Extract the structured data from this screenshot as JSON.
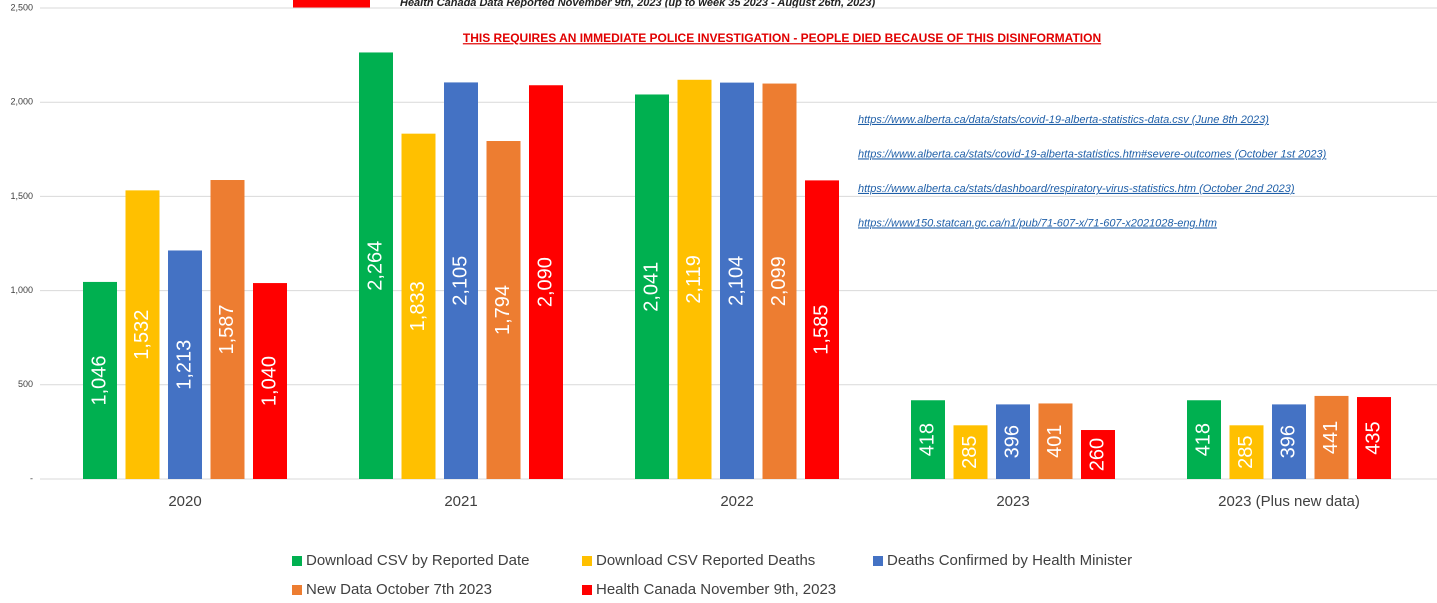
{
  "header_note": "Health Canada Data Reported November 9th, 2023 (up to week 35 2023 - August 26th, 2023)",
  "chart_data": {
    "type": "bar",
    "title": "THIS REQUIRES AN IMMEDIATE POLICE INVESTIGATION - PEOPLE DIED BECAUSE OF THIS DISINFORMATION",
    "annotations": [
      "https://www.alberta.ca/data/stats/covid-19-alberta-statistics-data.csv (June 8th 2023)",
      "https://www.alberta.ca/stats/covid-19-alberta-statistics.htm#severe-outcomes (October 1st 2023)",
      "https://www.alberta.ca/stats/dashboard/respiratory-virus-statistics.htm (October 2nd 2023)",
      "https://www150.statcan.gc.ca/n1/pub/71-607-x/71-607-x2021028-eng.htm"
    ],
    "categories": [
      "2020",
      "2021",
      "2022",
      "2023",
      "2023 (Plus new data)"
    ],
    "series": [
      {
        "name": "Download CSV by Reported Date",
        "color": "#00b050",
        "values": [
          1046,
          2264,
          2041,
          418,
          418
        ],
        "value_labels": [
          "1,046",
          "2,264",
          "2,041",
          "418",
          "418"
        ]
      },
      {
        "name": "Download CSV Reported Deaths",
        "color": "#ffc000",
        "values": [
          1532,
          1833,
          2119,
          285,
          285
        ],
        "value_labels": [
          "1,532",
          "1,833",
          "2,119",
          "285",
          "285"
        ]
      },
      {
        "name": "Deaths Confirmed by Health Minister",
        "color": "#4472c4",
        "values": [
          1213,
          2105,
          2104,
          396,
          396
        ],
        "value_labels": [
          "1,213",
          "2,105",
          "2,104",
          "396",
          "396"
        ]
      },
      {
        "name": "New Data October 7th 2023",
        "color": "#ed7d31",
        "values": [
          1587,
          1794,
          2099,
          401,
          441
        ],
        "value_labels": [
          "1,587",
          "1,794",
          "2,099",
          "401",
          "441"
        ]
      },
      {
        "name": "Health Canada November 9th, 2023",
        "color": "#ff0000",
        "values": [
          1040,
          2090,
          1585,
          260,
          435
        ],
        "value_labels": [
          "1,040",
          "2,090",
          "1,585",
          "260",
          "435"
        ]
      }
    ],
    "ylim": [
      0,
      2500
    ],
    "yticks": [
      {
        "value": 0,
        "label": "-"
      },
      500,
      {
        "value": 1000,
        "label": "1,000"
      },
      {
        "value": 1500,
        "label": "1,500"
      },
      {
        "value": 2000,
        "label": "2,000"
      },
      {
        "value": 2500,
        "label": "2,500"
      }
    ],
    "grid": true
  }
}
